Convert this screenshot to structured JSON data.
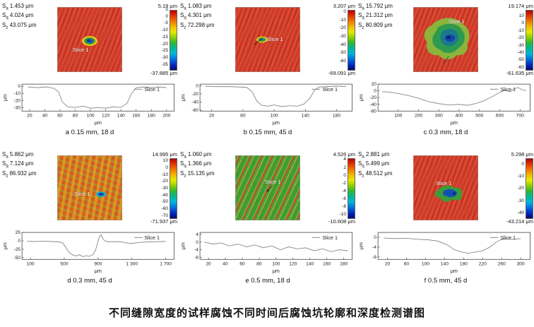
{
  "figure_caption": "不同缝隙宽度的试样腐蚀不同时间后腐蚀坑轮廓和深度检测谱图",
  "chart_data": [
    {
      "type": "line",
      "panel": "a",
      "caption": "a 0.15 mm, 18 d",
      "stats": [
        {
          "symbol": "S",
          "sub": "a",
          "value": "1.453 μm"
        },
        {
          "symbol": "S",
          "sub": "q",
          "value": "4.024 μm"
        },
        {
          "symbol": "S",
          "sub": "z",
          "value": "43.075 μm"
        }
      ],
      "surface": {
        "type": "streaked-red",
        "slice_label": "Slice 1"
      },
      "colorbar": {
        "top_label": "5.19 μm",
        "bottom_label": "-37.885 μm",
        "max": 5.19,
        "min": -37.885,
        "ticks": [
          5,
          0,
          -5,
          -10,
          -15,
          -20,
          -25,
          -30,
          -35
        ]
      },
      "profile": {
        "legend": "Slice 1",
        "xlabel": "μm",
        "ylabel": "μm",
        "xlim": [
          10,
          210
        ],
        "ylim": [
          -35,
          3
        ],
        "yticks": [
          0,
          -10,
          -20,
          -30
        ],
        "xticks": [
          "20",
          "40",
          "60",
          "80",
          "100",
          "120",
          "140",
          "160",
          "180",
          "200"
        ],
        "xtick_values": [
          20,
          40,
          60,
          80,
          100,
          120,
          140,
          160,
          180,
          200
        ],
        "x": [
          18,
          30,
          42,
          52,
          58,
          63,
          70,
          80,
          90,
          100,
          110,
          120,
          130,
          140,
          148,
          154,
          160,
          170,
          180,
          190,
          200
        ],
        "y": [
          -1,
          -2,
          -1,
          -3,
          -8,
          -22,
          -29,
          -30,
          -28,
          -31,
          -30,
          -31,
          -29,
          -30,
          -24,
          -10,
          -2,
          -1,
          -2,
          -1,
          -2
        ]
      }
    },
    {
      "type": "line",
      "panel": "b",
      "caption": "b 0.15 mm, 45 d",
      "stats": [
        {
          "symbol": "S",
          "sub": "a",
          "value": "1.083 μm"
        },
        {
          "symbol": "S",
          "sub": "q",
          "value": "4.301 μm"
        },
        {
          "symbol": "S",
          "sub": "z",
          "value": "72.298 μm"
        }
      ],
      "surface": {
        "type": "streaked-red",
        "slice_label": "Slice 1"
      },
      "colorbar": {
        "top_label": "3.207 μm",
        "bottom_label": "-69.091 μm",
        "max": 3.207,
        "min": -69.091,
        "ticks": [
          0,
          -10,
          -20,
          -30,
          -40,
          -50,
          -60
        ]
      },
      "profile": {
        "legend": "Slice 1",
        "xlabel": "μm",
        "ylabel": "μm",
        "xlim": [
          5,
          200
        ],
        "ylim": [
          -62,
          4
        ],
        "yticks": [
          0,
          -20,
          -40,
          -60
        ],
        "xticks": [
          "20",
          "60",
          "100",
          "140",
          "180"
        ],
        "xtick_values": [
          20,
          60,
          100,
          140,
          180
        ],
        "x": [
          12,
          25,
          40,
          55,
          65,
          72,
          78,
          84,
          92,
          100,
          110,
          120,
          130,
          138,
          146,
          152,
          158,
          168,
          180,
          192
        ],
        "y": [
          -1,
          -2,
          -2,
          -3,
          -4,
          -15,
          -38,
          -48,
          -50,
          -47,
          -51,
          -49,
          -50,
          -45,
          -30,
          -10,
          -3,
          -2,
          -1,
          -2
        ]
      }
    },
    {
      "type": "line",
      "panel": "c",
      "caption": "c 0.3 mm, 18 d",
      "stats": [
        {
          "symbol": "S",
          "sub": "a",
          "value": "15.792 μm"
        },
        {
          "symbol": "S",
          "sub": "q",
          "value": "21.312 μm"
        },
        {
          "symbol": "S",
          "sub": "z",
          "value": "80.809 μm"
        }
      ],
      "surface": {
        "type": "streaked-red",
        "slice_label": "Slice 1"
      },
      "colorbar": {
        "top_label": "19.174 μm",
        "bottom_label": "-61.635 μm",
        "max": 19.174,
        "min": -61.635,
        "ticks": [
          10,
          0,
          -10,
          -20,
          -30,
          -40,
          -50,
          -60
        ]
      },
      "profile": {
        "legend": "Slice 1",
        "xlabel": "μm",
        "ylabel": "μm",
        "xlim": [
          0,
          750
        ],
        "ylim": [
          -60,
          20
        ],
        "yticks": [
          20,
          0,
          -20,
          -40,
          -60
        ],
        "xticks": [
          "100",
          "200",
          "300",
          "400",
          "500",
          "600",
          "700"
        ],
        "xtick_values": [
          100,
          200,
          300,
          400,
          500,
          600,
          700
        ],
        "x": [
          20,
          60,
          100,
          150,
          200,
          250,
          300,
          350,
          400,
          440,
          480,
          520,
          560,
          590,
          610,
          630,
          650,
          670,
          690,
          710,
          730
        ],
        "y": [
          -2,
          -4,
          -8,
          -14,
          -22,
          -32,
          -38,
          -42,
          -40,
          -43,
          -38,
          -30,
          -18,
          -8,
          -2,
          2,
          -3,
          6,
          10,
          3,
          1
        ]
      }
    },
    {
      "type": "line",
      "panel": "d",
      "caption": "d 0.3 mm, 45 d",
      "stats": [
        {
          "symbol": "S",
          "sub": "a",
          "value": "5.862 μm"
        },
        {
          "symbol": "S",
          "sub": "q",
          "value": "7.124 μm"
        },
        {
          "symbol": "S",
          "sub": "z",
          "value": "86.932 μm"
        }
      ],
      "surface": {
        "type": "mottled",
        "slice_label": "Slice 1"
      },
      "colorbar": {
        "top_label": "14.995 μm",
        "bottom_label": "-71.937 μm",
        "max": 14.995,
        "min": -71.937,
        "ticks": [
          10,
          0,
          -10,
          -20,
          -30,
          -40,
          -50,
          -60,
          -70
        ]
      },
      "profile": {
        "legend": "Slice 1",
        "xlabel": "μm",
        "ylabel": "μm",
        "xlim": [
          0,
          1800
        ],
        "ylim": [
          -55,
          25
        ],
        "yticks": [
          25,
          0,
          -25,
          -50
        ],
        "xticks": [
          "100",
          "500",
          "900",
          "1 300",
          "1 700"
        ],
        "xtick_values": [
          100,
          500,
          900,
          1300,
          1700
        ],
        "x": [
          60,
          150,
          250,
          350,
          430,
          480,
          520,
          560,
          600,
          640,
          680,
          720,
          760,
          800,
          840,
          870,
          895,
          915,
          935,
          960,
          1000,
          1060,
          1130,
          1200,
          1280,
          1350,
          1430,
          1520,
          1620,
          1700
        ],
        "y": [
          -1,
          -2,
          -1,
          -2,
          -3,
          -6,
          -20,
          -35,
          -42,
          -45,
          -41,
          -47,
          -44,
          -46,
          -40,
          -28,
          -5,
          12,
          18,
          4,
          -2,
          -3,
          -2,
          -4,
          -8,
          -6,
          -4,
          -3,
          -2,
          -2
        ]
      }
    },
    {
      "type": "line",
      "panel": "e",
      "caption": "e 0.5 mm, 18 d",
      "stats": [
        {
          "symbol": "S",
          "sub": "a",
          "value": "1.060 μm"
        },
        {
          "symbol": "S",
          "sub": "q",
          "value": "1.366 μm"
        },
        {
          "symbol": "S",
          "sub": "z",
          "value": "15.135 μm"
        }
      ],
      "surface": {
        "type": "striped-green",
        "slice_label": "Slice 1"
      },
      "colorbar": {
        "top_label": "4.526 μm",
        "bottom_label": "-10.608 μm",
        "max": 4.526,
        "min": -10.608,
        "ticks": [
          4,
          2,
          0,
          -2,
          -4,
          -6,
          -8,
          -10
        ]
      },
      "profile": {
        "legend": "Slice 1",
        "xlabel": "μm",
        "ylabel": "μm",
        "xlim": [
          10,
          190
        ],
        "ylim": [
          -9,
          5
        ],
        "yticks": [
          4,
          0,
          -4,
          -8
        ],
        "xticks": [
          "20",
          "40",
          "60",
          "80",
          "100",
          "120",
          "140",
          "160",
          "180"
        ],
        "xtick_values": [
          20,
          40,
          60,
          80,
          100,
          120,
          140,
          160,
          180
        ],
        "x": [
          15,
          25,
          35,
          45,
          55,
          65,
          75,
          85,
          95,
          105,
          115,
          125,
          135,
          145,
          155,
          165,
          175,
          185
        ],
        "y": [
          0,
          -1,
          -0.5,
          -2,
          -1,
          -2.5,
          -1.5,
          -3,
          -2,
          -4,
          -2.5,
          -3.5,
          -3,
          -4.5,
          -3.5,
          -5,
          -4,
          -4.5
        ]
      }
    },
    {
      "type": "line",
      "panel": "f",
      "caption": "f 0.5 mm, 45 d",
      "stats": [
        {
          "symbol": "S",
          "sub": "a",
          "value": "2.881 μm"
        },
        {
          "symbol": "S",
          "sub": "q",
          "value": "5.499 μm"
        },
        {
          "symbol": "S",
          "sub": "z",
          "value": "48.512 μm"
        }
      ],
      "surface": {
        "type": "streaked-red",
        "slice_label": "Slice 1"
      },
      "colorbar": {
        "top_label": "5.298 μm",
        "bottom_label": "-43.214 μm",
        "max": 5.298,
        "min": -43.214,
        "ticks": [
          0,
          -10,
          -20,
          -30,
          -40
        ]
      },
      "profile": {
        "legend": "Slice 1",
        "xlabel": "μm",
        "ylabel": "μm",
        "xlim": [
          0,
          320
        ],
        "ylim": [
          -9,
          2
        ],
        "yticks": [
          0,
          -4,
          -8
        ],
        "xticks": [
          "20",
          "60",
          "100",
          "140",
          "180",
          "220",
          "260",
          "300"
        ],
        "xtick_values": [
          20,
          60,
          100,
          140,
          180,
          220,
          260,
          300
        ],
        "x": [
          12,
          35,
          60,
          85,
          105,
          125,
          145,
          160,
          175,
          190,
          205,
          220,
          235,
          248,
          258,
          270,
          285,
          300
        ],
        "y": [
          -0.3,
          -0.5,
          -0.4,
          -0.8,
          -1,
          -1.5,
          -3,
          -5,
          -6,
          -6.5,
          -6,
          -5.5,
          -4,
          -2,
          -1,
          -0.6,
          -0.8,
          -0.5
        ]
      }
    }
  ]
}
